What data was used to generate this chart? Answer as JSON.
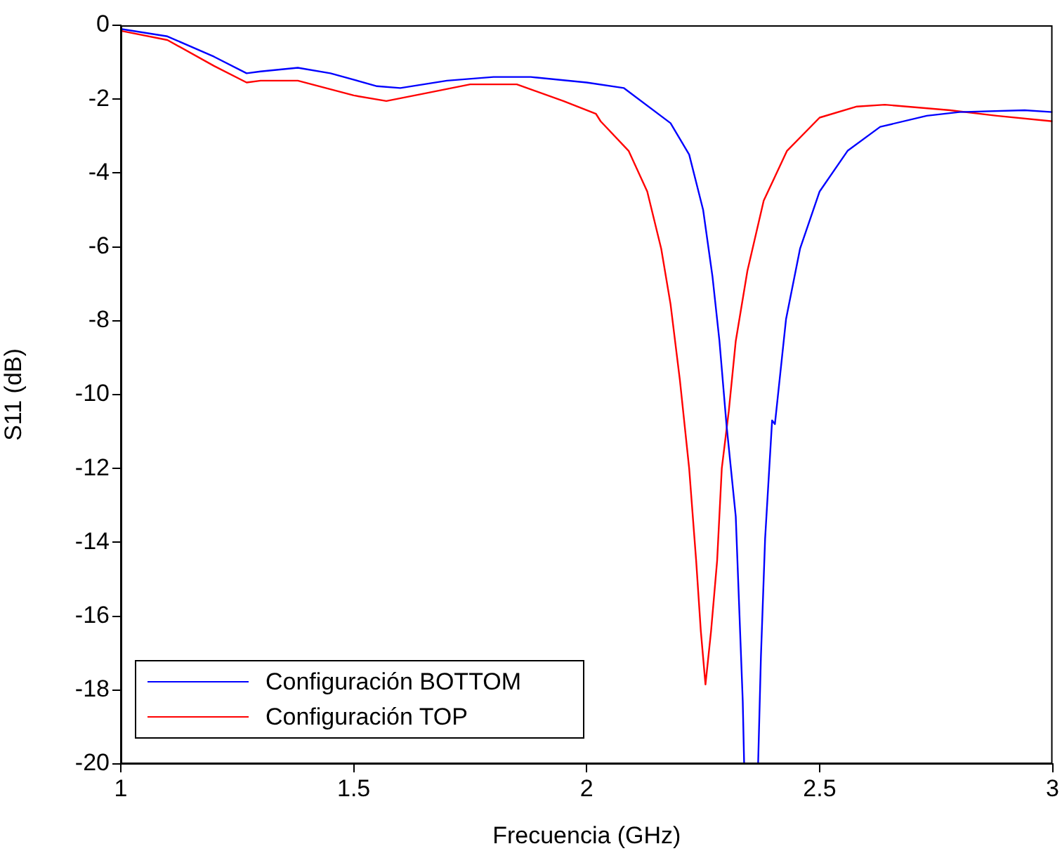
{
  "chart_data": {
    "type": "line",
    "xlabel": "Frecuencia (GHz)",
    "ylabel": "S11 (dB)",
    "xlim": [
      1,
      3
    ],
    "xticks": [
      1,
      1.5,
      2,
      2.5,
      3
    ],
    "ylim": [
      -20,
      0
    ],
    "yticks": [
      -20,
      -18,
      -16,
      -14,
      -12,
      -10,
      -8,
      -6,
      -4,
      -2,
      0
    ],
    "grid": false,
    "legend": "bottom left",
    "marker": "none",
    "line_style": "solid",
    "series": [
      {
        "name": "Configuración BOTTOM",
        "color": "#0000ff",
        "x": [
          1,
          1.1,
          1.2,
          1.27,
          1.3,
          1.38,
          1.45,
          1.55,
          1.6,
          1.7,
          1.8,
          1.88,
          2.0,
          2.08,
          2.18,
          2.22,
          2.25,
          2.27,
          2.285,
          2.3,
          2.32,
          2.335,
          2.338,
          2.368,
          2.374,
          2.383,
          2.398,
          2.404,
          2.428,
          2.458,
          2.5,
          2.56,
          2.63,
          2.73,
          2.8,
          2.94,
          3
        ],
        "values": [
          -0.1,
          -0.3,
          -0.85,
          -1.3,
          -1.25,
          -1.15,
          -1.3,
          -1.65,
          -1.7,
          -1.5,
          -1.4,
          -1.4,
          -1.55,
          -1.7,
          -2.65,
          -3.5,
          -5.0,
          -6.8,
          -8.55,
          -10.8,
          -13.3,
          -18.3,
          -20,
          -20,
          -17.1,
          -13.9,
          -10.7,
          -10.8,
          -7.95,
          -6.05,
          -4.5,
          -3.4,
          -2.75,
          -2.45,
          -2.35,
          -2.3,
          -2.35
        ]
      },
      {
        "name": "Configuración TOP",
        "color": "#ff0000",
        "x": [
          1,
          1.1,
          1.2,
          1.27,
          1.3,
          1.38,
          1.5,
          1.57,
          1.65,
          1.75,
          1.85,
          1.95,
          2.02,
          2.03,
          2.09,
          2.13,
          2.16,
          2.18,
          2.2,
          2.22,
          2.235,
          2.245,
          2.255,
          2.267,
          2.28,
          2.29,
          2.305,
          2.32,
          2.345,
          2.38,
          2.43,
          2.5,
          2.58,
          2.64,
          2.78,
          2.88,
          3
        ],
        "values": [
          -0.15,
          -0.4,
          -1.1,
          -1.55,
          -1.5,
          -1.5,
          -1.9,
          -2.05,
          -1.85,
          -1.6,
          -1.6,
          -2.05,
          -2.4,
          -2.6,
          -3.4,
          -4.5,
          -6.05,
          -7.55,
          -9.6,
          -12.0,
          -14.5,
          -16.4,
          -17.85,
          -16.4,
          -14.5,
          -12.0,
          -10.45,
          -8.55,
          -6.65,
          -4.75,
          -3.4,
          -2.5,
          -2.2,
          -2.15,
          -2.3,
          -2.45,
          -2.6
        ]
      }
    ]
  }
}
